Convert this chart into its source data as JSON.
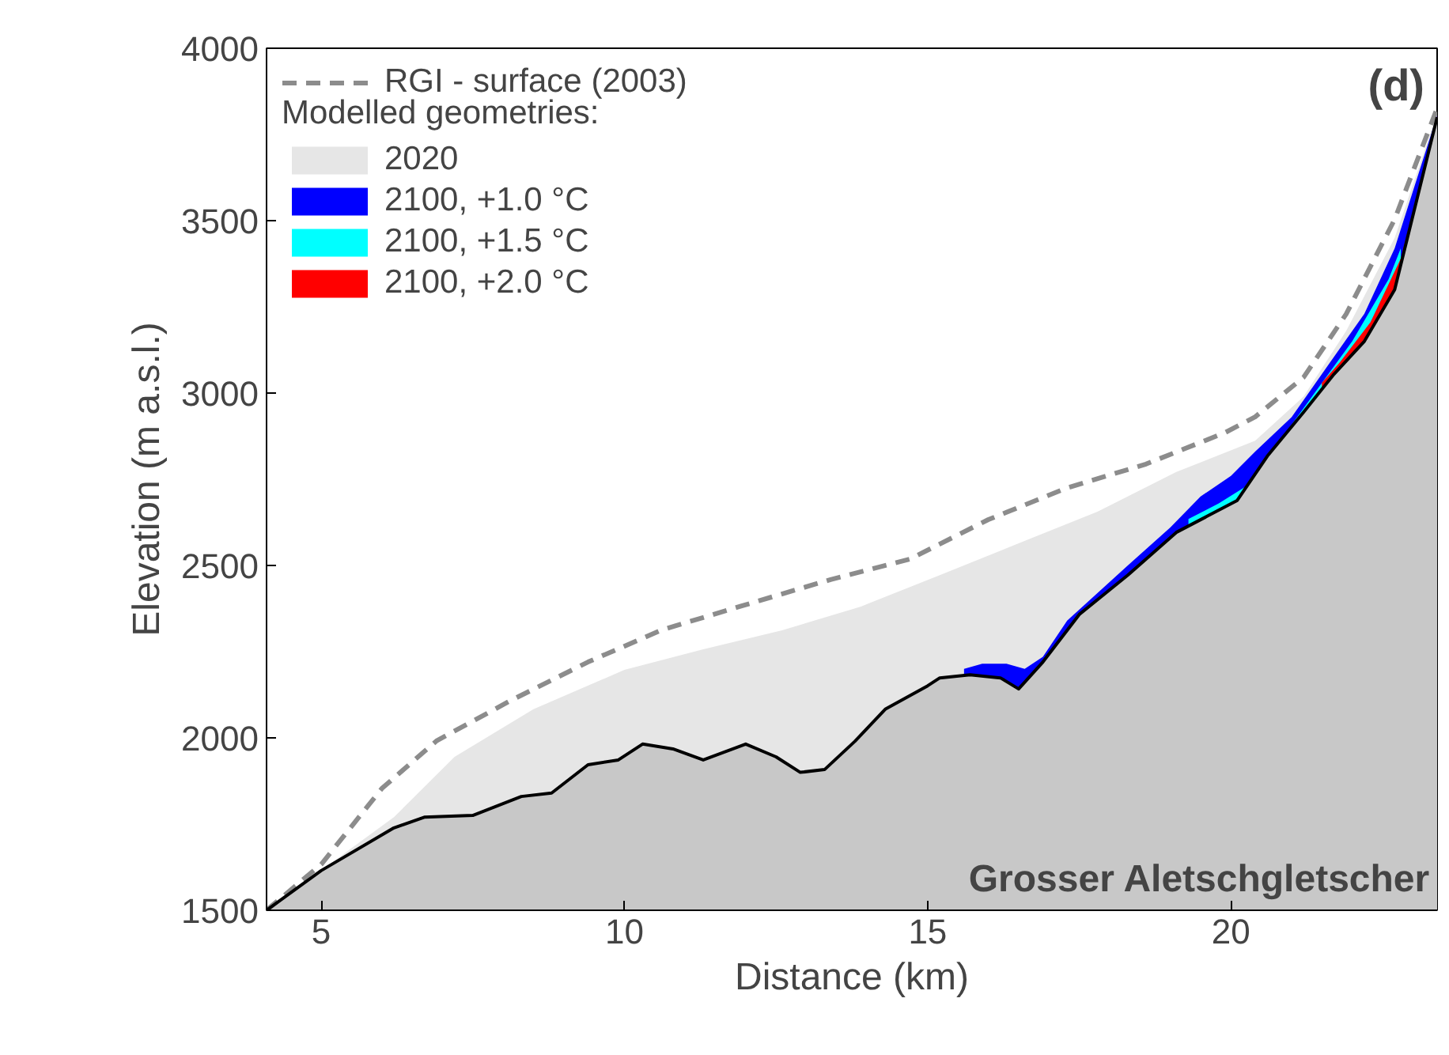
{
  "chart_data": {
    "type": "area",
    "xlabel": "Distance (km)",
    "ylabel": "Elevation (m a.s.l.)",
    "legend_title": "Modelled geometries:",
    "xlim": [
      4.1,
      23.4
    ],
    "ylim": [
      1500,
      4000
    ],
    "xticks": [
      5,
      10,
      15,
      20
    ],
    "yticks": [
      1500,
      2000,
      2500,
      3000,
      3500,
      4000
    ],
    "grid": false,
    "legend": "top left",
    "annotations": [
      "(d)",
      "Grosser Aletschgletscher"
    ],
    "series": [
      {
        "name": "2020",
        "color": "#e6e6e6",
        "x": [
          4.1,
          5,
          5.5,
          6.2,
          7.2,
          8.5,
          10,
          11.3,
          12.6,
          13.9,
          15.2,
          16.5,
          17.8,
          19.1,
          20.4,
          21.2,
          21.9,
          22.7,
          23.4
        ],
        "values": [
          1500,
          1615,
          1680,
          1770,
          1945,
          2083,
          2197,
          2257,
          2312,
          2381,
          2472,
          2564,
          2656,
          2771,
          2862,
          2990,
          3180,
          3450,
          3810
        ]
      },
      {
        "name": "2100, +1.0 °C",
        "color": "#0000ff",
        "x": [
          15.6,
          15.9,
          16.3,
          16.6,
          16.9,
          17.3,
          18.3,
          19.0,
          19.5,
          20.0,
          20.4,
          21.0,
          21.6,
          22.2,
          22.7,
          23.4
        ],
        "values": [
          2200,
          2215,
          2215,
          2200,
          2235,
          2340,
          2500,
          2610,
          2700,
          2760,
          2830,
          2930,
          3080,
          3230,
          3420,
          3805
        ]
      },
      {
        "name": "2100, +1.5 °C",
        "color": "#00ffff",
        "x": [
          19.3,
          19.8,
          20.3,
          20.8,
          21.4,
          22.0,
          22.6,
          22.8
        ],
        "values": [
          2635,
          2680,
          2735,
          2860,
          3005,
          3150,
          3330,
          3420
        ]
      },
      {
        "name": "2100, +2.0 °C",
        "color": "#ff0000",
        "x": [
          21.5,
          21.8,
          22.3,
          22.8,
          23.4
        ],
        "values": [
          3030,
          3090,
          3205,
          3390,
          3803
        ]
      },
      {
        "color": "#c8c8c8",
        "x": [
          4.1,
          5,
          6.2,
          6.7,
          7.5,
          8.3,
          8.8,
          9.4,
          9.9,
          10.3,
          10.8,
          11.3,
          12.0,
          12.5,
          12.9,
          13.3,
          13.8,
          14.3,
          15,
          15.2,
          15.7,
          16.2,
          16.5,
          16.9,
          17.5,
          18.3,
          19.1,
          19.6,
          20.1,
          20.6,
          21.2,
          21.7,
          22.2,
          22.7,
          23.4
        ],
        "values": [
          1500,
          1615,
          1739,
          1770,
          1775,
          1830,
          1840,
          1922,
          1936,
          1982,
          1968,
          1936,
          1982,
          1945,
          1900,
          1908,
          1990,
          2083,
          2151,
          2174,
          2183,
          2174,
          2142,
          2220,
          2358,
          2472,
          2596,
          2642,
          2688,
          2817,
          2945,
          3055,
          3150,
          3300,
          3800
        ]
      },
      {
        "name": "RGI - surface (2003)",
        "type": "line",
        "line_style": "dashed",
        "color": "#8c8c8c",
        "x": [
          4.1,
          5,
          6,
          6.9,
          8.1,
          9.4,
          10.6,
          11.9,
          13.4,
          14.7,
          16,
          17.3,
          18.6,
          19.9,
          20.4,
          21.2,
          21.9,
          22.7,
          23.4
        ],
        "values": [
          1500,
          1633,
          1853,
          1991,
          2106,
          2220,
          2312,
          2381,
          2459,
          2518,
          2633,
          2725,
          2794,
          2885,
          2931,
          3046,
          3229,
          3504,
          3826
        ]
      }
    ]
  }
}
